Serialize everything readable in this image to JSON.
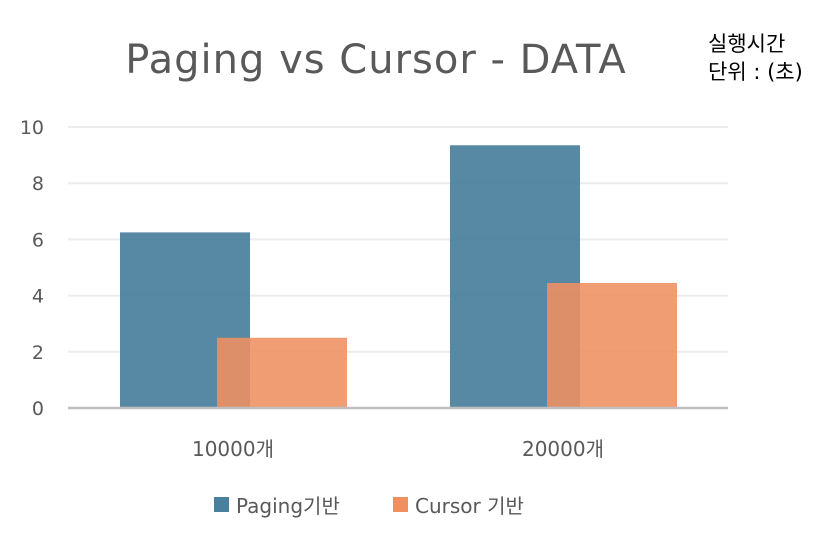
{
  "chart_data": {
    "type": "bar",
    "title": "Paging vs Cursor - DATA",
    "unit_note": [
      "실행시간",
      "단위 : (초)"
    ],
    "categories": [
      "10000개",
      "20000개"
    ],
    "series": [
      {
        "name": "Paging기반",
        "values": [
          6.25,
          9.35
        ]
      },
      {
        "name": "Cursor 기반",
        "values": [
          2.5,
          4.45
        ]
      }
    ],
    "ylim": [
      0,
      10
    ],
    "yticks": [
      0,
      2,
      4,
      6,
      8,
      10
    ],
    "xlabel": "",
    "ylabel": "",
    "grid": true,
    "legend": "bottom",
    "overlap": true
  },
  "colors": {
    "series": [
      "#4a7f9d",
      "#ef9060"
    ],
    "grid": "#ececec",
    "axis": "#bfbfbf",
    "text": "#595959"
  }
}
